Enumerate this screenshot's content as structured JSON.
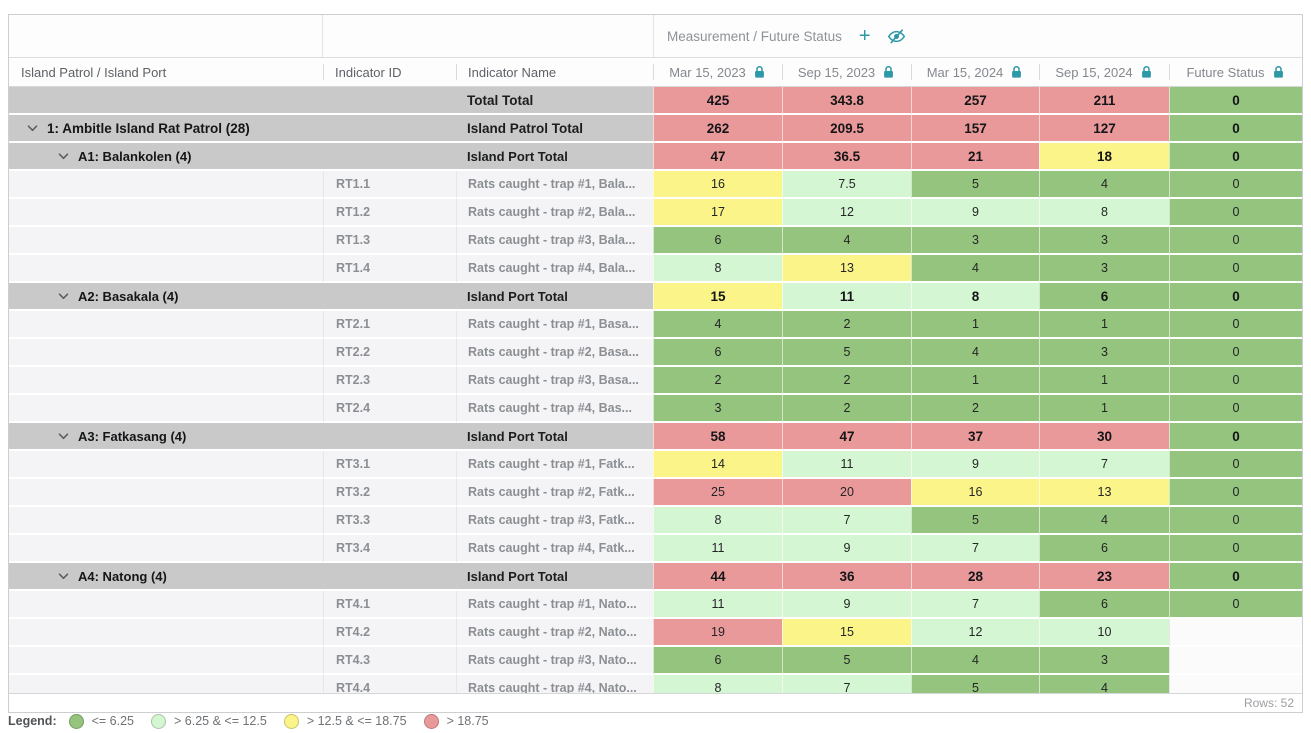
{
  "colors": {
    "accent_teal": "#2e98a6",
    "group_row_bg": "#c9c9c9",
    "cell": {
      "green": "#94c47d",
      "lightgreen": "#d5f6d3",
      "yellow": "#fbf488",
      "red": "#ea999a"
    }
  },
  "table": {
    "group_header": {
      "label": "Measurement / Future Status",
      "add_icon": "plus-icon",
      "hide_icon": "eye-off-icon"
    },
    "columns": [
      {
        "label": "Island Patrol / Island Port",
        "lock": false
      },
      {
        "label": "Indicator ID",
        "lock": false
      },
      {
        "label": "Indicator Name",
        "lock": false
      },
      {
        "label": "Mar 15, 2023",
        "lock": true
      },
      {
        "label": "Sep 15, 2023",
        "lock": true
      },
      {
        "label": "Mar 15, 2024",
        "lock": true
      },
      {
        "label": "Sep 15, 2024",
        "lock": true
      },
      {
        "label": "Future Status",
        "lock": true
      }
    ],
    "rows": [
      {
        "type": "total",
        "label": "",
        "id": "",
        "name": "Total Total",
        "values": [
          {
            "v": "425",
            "c": "red"
          },
          {
            "v": "343.8",
            "c": "red"
          },
          {
            "v": "257",
            "c": "red"
          },
          {
            "v": "211",
            "c": "red"
          },
          {
            "v": "0",
            "c": "green"
          }
        ]
      },
      {
        "type": "patrol",
        "label": "1: Ambitle Island Rat Patrol (28)",
        "id": "",
        "name": "Island Patrol Total",
        "values": [
          {
            "v": "262",
            "c": "red"
          },
          {
            "v": "209.5",
            "c": "red"
          },
          {
            "v": "157",
            "c": "red"
          },
          {
            "v": "127",
            "c": "red"
          },
          {
            "v": "0",
            "c": "green"
          }
        ]
      },
      {
        "type": "port",
        "label": "A1: Balankolen (4)",
        "id": "",
        "name": "Island Port Total",
        "values": [
          {
            "v": "47",
            "c": "red"
          },
          {
            "v": "36.5",
            "c": "red"
          },
          {
            "v": "21",
            "c": "red"
          },
          {
            "v": "18",
            "c": "yellow"
          },
          {
            "v": "0",
            "c": "green"
          }
        ]
      },
      {
        "type": "detail",
        "label": "",
        "id": "RT1.1",
        "name": "Rats caught - trap #1, Bala...",
        "values": [
          {
            "v": "16",
            "c": "yellow"
          },
          {
            "v": "7.5",
            "c": "lightgreen"
          },
          {
            "v": "5",
            "c": "green"
          },
          {
            "v": "4",
            "c": "green"
          },
          {
            "v": "0",
            "c": "green"
          }
        ]
      },
      {
        "type": "detail",
        "label": "",
        "id": "RT1.2",
        "name": "Rats caught - trap #2, Bala...",
        "values": [
          {
            "v": "17",
            "c": "yellow"
          },
          {
            "v": "12",
            "c": "lightgreen"
          },
          {
            "v": "9",
            "c": "lightgreen"
          },
          {
            "v": "8",
            "c": "lightgreen"
          },
          {
            "v": "0",
            "c": "green"
          }
        ]
      },
      {
        "type": "detail",
        "label": "",
        "id": "RT1.3",
        "name": "Rats caught - trap #3, Bala...",
        "values": [
          {
            "v": "6",
            "c": "green"
          },
          {
            "v": "4",
            "c": "green"
          },
          {
            "v": "3",
            "c": "green"
          },
          {
            "v": "3",
            "c": "green"
          },
          {
            "v": "0",
            "c": "green"
          }
        ]
      },
      {
        "type": "detail",
        "label": "",
        "id": "RT1.4",
        "name": "Rats caught - trap #4, Bala...",
        "values": [
          {
            "v": "8",
            "c": "lightgreen"
          },
          {
            "v": "13",
            "c": "yellow"
          },
          {
            "v": "4",
            "c": "green"
          },
          {
            "v": "3",
            "c": "green"
          },
          {
            "v": "0",
            "c": "green"
          }
        ]
      },
      {
        "type": "port",
        "label": "A2: Basakala (4)",
        "id": "",
        "name": "Island Port Total",
        "values": [
          {
            "v": "15",
            "c": "yellow"
          },
          {
            "v": "11",
            "c": "lightgreen"
          },
          {
            "v": "8",
            "c": "lightgreen"
          },
          {
            "v": "6",
            "c": "green"
          },
          {
            "v": "0",
            "c": "green"
          }
        ]
      },
      {
        "type": "detail",
        "label": "",
        "id": "RT2.1",
        "name": "Rats caught - trap #1, Basa...",
        "values": [
          {
            "v": "4",
            "c": "green"
          },
          {
            "v": "2",
            "c": "green"
          },
          {
            "v": "1",
            "c": "green"
          },
          {
            "v": "1",
            "c": "green"
          },
          {
            "v": "0",
            "c": "green"
          }
        ]
      },
      {
        "type": "detail",
        "label": "",
        "id": "RT2.2",
        "name": "Rats caught - trap #2, Basa...",
        "values": [
          {
            "v": "6",
            "c": "green"
          },
          {
            "v": "5",
            "c": "green"
          },
          {
            "v": "4",
            "c": "green"
          },
          {
            "v": "3",
            "c": "green"
          },
          {
            "v": "0",
            "c": "green"
          }
        ]
      },
      {
        "type": "detail",
        "label": "",
        "id": "RT2.3",
        "name": "Rats caught - trap #3, Basa...",
        "values": [
          {
            "v": "2",
            "c": "green"
          },
          {
            "v": "2",
            "c": "green"
          },
          {
            "v": "1",
            "c": "green"
          },
          {
            "v": "1",
            "c": "green"
          },
          {
            "v": "0",
            "c": "green"
          }
        ]
      },
      {
        "type": "detail",
        "label": "",
        "id": "RT2.4",
        "name": "Rats caught - trap #4, Bas...",
        "values": [
          {
            "v": "3",
            "c": "green"
          },
          {
            "v": "2",
            "c": "green"
          },
          {
            "v": "2",
            "c": "green"
          },
          {
            "v": "1",
            "c": "green"
          },
          {
            "v": "0",
            "c": "green"
          }
        ]
      },
      {
        "type": "port",
        "label": "A3: Fatkasang (4)",
        "id": "",
        "name": "Island Port Total",
        "values": [
          {
            "v": "58",
            "c": "red"
          },
          {
            "v": "47",
            "c": "red"
          },
          {
            "v": "37",
            "c": "red"
          },
          {
            "v": "30",
            "c": "red"
          },
          {
            "v": "0",
            "c": "green"
          }
        ]
      },
      {
        "type": "detail",
        "label": "",
        "id": "RT3.1",
        "name": "Rats caught - trap #1, Fatk...",
        "values": [
          {
            "v": "14",
            "c": "yellow"
          },
          {
            "v": "11",
            "c": "lightgreen"
          },
          {
            "v": "9",
            "c": "lightgreen"
          },
          {
            "v": "7",
            "c": "lightgreen"
          },
          {
            "v": "0",
            "c": "green"
          }
        ]
      },
      {
        "type": "detail",
        "label": "",
        "id": "RT3.2",
        "name": "Rats caught - trap #2, Fatk...",
        "values": [
          {
            "v": "25",
            "c": "red"
          },
          {
            "v": "20",
            "c": "red"
          },
          {
            "v": "16",
            "c": "yellow"
          },
          {
            "v": "13",
            "c": "yellow"
          },
          {
            "v": "0",
            "c": "green"
          }
        ]
      },
      {
        "type": "detail",
        "label": "",
        "id": "RT3.3",
        "name": "Rats caught - trap #3, Fatk...",
        "values": [
          {
            "v": "8",
            "c": "lightgreen"
          },
          {
            "v": "7",
            "c": "lightgreen"
          },
          {
            "v": "5",
            "c": "green"
          },
          {
            "v": "4",
            "c": "green"
          },
          {
            "v": "0",
            "c": "green"
          }
        ]
      },
      {
        "type": "detail",
        "label": "",
        "id": "RT3.4",
        "name": "Rats caught - trap #4, Fatk...",
        "values": [
          {
            "v": "11",
            "c": "lightgreen"
          },
          {
            "v": "9",
            "c": "lightgreen"
          },
          {
            "v": "7",
            "c": "lightgreen"
          },
          {
            "v": "6",
            "c": "green"
          },
          {
            "v": "0",
            "c": "green"
          }
        ]
      },
      {
        "type": "port",
        "label": "A4: Natong (4)",
        "id": "",
        "name": "Island Port Total",
        "values": [
          {
            "v": "44",
            "c": "red"
          },
          {
            "v": "36",
            "c": "red"
          },
          {
            "v": "28",
            "c": "red"
          },
          {
            "v": "23",
            "c": "red"
          },
          {
            "v": "0",
            "c": "green"
          }
        ]
      },
      {
        "type": "detail",
        "label": "",
        "id": "RT4.1",
        "name": "Rats caught - trap #1, Nato...",
        "values": [
          {
            "v": "11",
            "c": "lightgreen"
          },
          {
            "v": "9",
            "c": "lightgreen"
          },
          {
            "v": "7",
            "c": "lightgreen"
          },
          {
            "v": "6",
            "c": "green"
          },
          {
            "v": "0",
            "c": "green"
          }
        ]
      },
      {
        "type": "detail",
        "label": "",
        "id": "RT4.2",
        "name": "Rats caught - trap #2, Nato...",
        "values": [
          {
            "v": "19",
            "c": "red"
          },
          {
            "v": "15",
            "c": "yellow"
          },
          {
            "v": "12",
            "c": "lightgreen"
          },
          {
            "v": "10",
            "c": "lightgreen"
          },
          {
            "v": "",
            "c": "none"
          }
        ]
      },
      {
        "type": "detail",
        "label": "",
        "id": "RT4.3",
        "name": "Rats caught - trap #3, Nato...",
        "values": [
          {
            "v": "6",
            "c": "green"
          },
          {
            "v": "5",
            "c": "green"
          },
          {
            "v": "4",
            "c": "green"
          },
          {
            "v": "3",
            "c": "green"
          },
          {
            "v": "",
            "c": "none"
          }
        ]
      },
      {
        "type": "detail",
        "label": "",
        "id": "RT4.4",
        "name": "Rats caught - trap #4, Nato...",
        "values": [
          {
            "v": "8",
            "c": "lightgreen"
          },
          {
            "v": "7",
            "c": "lightgreen"
          },
          {
            "v": "5",
            "c": "green"
          },
          {
            "v": "4",
            "c": "green"
          },
          {
            "v": "",
            "c": "none"
          }
        ]
      }
    ],
    "footer": {
      "rows_label": "Rows: 52"
    }
  },
  "legend": {
    "title": "Legend:",
    "items": [
      {
        "color": "green",
        "label": "<= 6.25"
      },
      {
        "color": "lightgreen",
        "label": "> 6.25 & <= 12.5"
      },
      {
        "color": "yellow",
        "label": "> 12.5 & <= 18.75"
      },
      {
        "color": "red",
        "label": "> 18.75"
      }
    ]
  }
}
